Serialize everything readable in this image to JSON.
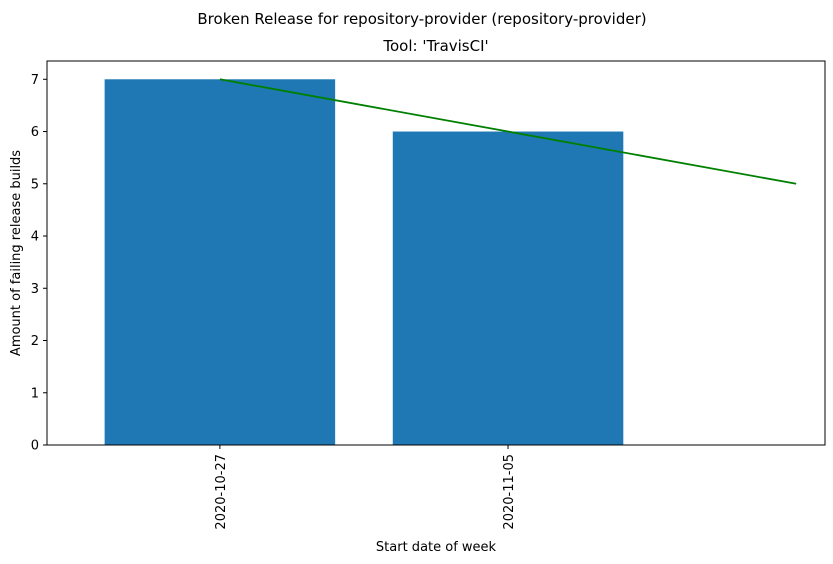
{
  "chart_data": {
    "type": "bar",
    "suptitle": "Broken Release for repository-provider (repository-provider)",
    "title": "Tool: 'TravisCI'",
    "xlabel": "Start date of week",
    "ylabel": "Amount of failing release builds",
    "categories": [
      "2020-10-27",
      "2020-11-05"
    ],
    "values": [
      7,
      6
    ],
    "bar_color": "#1f77b4",
    "trend": {
      "color": "#008000",
      "points": [
        [
          0,
          7
        ],
        [
          1,
          6
        ],
        [
          2,
          5
        ]
      ]
    },
    "xlim": [
      -0.6,
      2.1
    ],
    "ylim": [
      0,
      7.35
    ],
    "yticks": [
      0,
      1,
      2,
      3,
      4,
      5,
      6,
      7
    ],
    "grid": false,
    "legend": "none"
  }
}
